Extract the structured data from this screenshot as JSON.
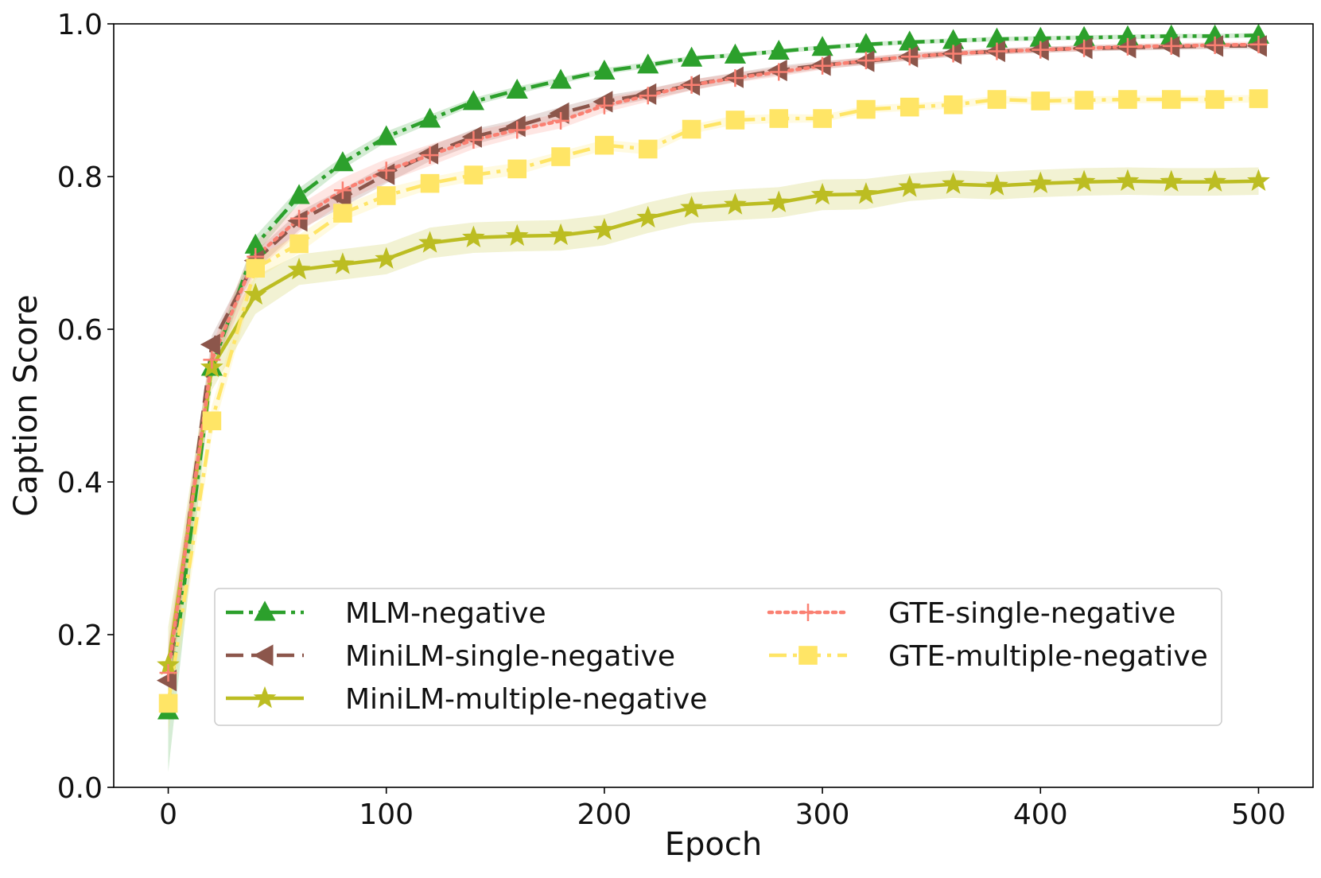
{
  "chart_data": {
    "type": "line",
    "title": "",
    "xlabel": "Epoch",
    "ylabel": "Caption Score",
    "xlim": [
      -25,
      525
    ],
    "ylim": [
      0.0,
      1.0
    ],
    "xticks": [
      0,
      100,
      200,
      300,
      400,
      500
    ],
    "yticks": [
      0.0,
      0.2,
      0.4,
      0.6,
      0.8,
      1.0
    ],
    "xtick_labels": [
      "0",
      "100",
      "200",
      "300",
      "400",
      "500"
    ],
    "ytick_labels": [
      "0.0",
      "0.2",
      "0.4",
      "0.6",
      "0.8",
      "1.0"
    ],
    "grid": false,
    "legend_position": "lower-right",
    "x": [
      0,
      20,
      40,
      60,
      80,
      100,
      120,
      140,
      160,
      180,
      200,
      220,
      240,
      260,
      280,
      300,
      320,
      340,
      360,
      380,
      400,
      420,
      440,
      460,
      480,
      500
    ],
    "series": [
      {
        "name": "MLM-negative",
        "color": "#2ca02c",
        "dash": "dashdotdot",
        "marker": "triangle-up",
        "values": [
          0.1,
          0.55,
          0.71,
          0.775,
          0.818,
          0.852,
          0.875,
          0.898,
          0.913,
          0.926,
          0.938,
          0.946,
          0.955,
          0.959,
          0.964,
          0.969,
          0.973,
          0.976,
          0.978,
          0.98,
          0.981,
          0.982,
          0.983,
          0.984,
          0.984,
          0.985
        ],
        "band": [
          0.08,
          0.015,
          0.012,
          0.01,
          0.008,
          0.007,
          0.006,
          0.005,
          0.005,
          0.004,
          0.004,
          0.004,
          0.003,
          0.003,
          0.003,
          0.003,
          0.003,
          0.003,
          0.003,
          0.003,
          0.003,
          0.003,
          0.003,
          0.003,
          0.003,
          0.003
        ]
      },
      {
        "name": "MiniLM-single-negative",
        "color": "#8c564b",
        "dash": "dashed",
        "marker": "triangle-left",
        "values": [
          0.14,
          0.58,
          0.69,
          0.742,
          0.772,
          0.803,
          0.83,
          0.852,
          0.866,
          0.883,
          0.898,
          0.908,
          0.92,
          0.93,
          0.939,
          0.946,
          0.951,
          0.957,
          0.961,
          0.964,
          0.966,
          0.968,
          0.969,
          0.97,
          0.971,
          0.971
        ],
        "band": [
          0.03,
          0.012,
          0.012,
          0.012,
          0.012,
          0.012,
          0.01,
          0.01,
          0.009,
          0.008,
          0.008,
          0.007,
          0.007,
          0.006,
          0.006,
          0.005,
          0.005,
          0.005,
          0.004,
          0.004,
          0.004,
          0.004,
          0.004,
          0.004,
          0.004,
          0.004
        ]
      },
      {
        "name": "MiniLM-multiple-negative",
        "color": "#bcbd22",
        "dash": "solid",
        "marker": "star",
        "values": [
          0.16,
          0.55,
          0.645,
          0.678,
          0.685,
          0.692,
          0.713,
          0.72,
          0.722,
          0.723,
          0.73,
          0.746,
          0.759,
          0.763,
          0.766,
          0.776,
          0.777,
          0.786,
          0.79,
          0.788,
          0.791,
          0.793,
          0.794,
          0.793,
          0.793,
          0.794
        ],
        "band": [
          0.05,
          0.03,
          0.025,
          0.02,
          0.02,
          0.02,
          0.02,
          0.02,
          0.02,
          0.02,
          0.02,
          0.02,
          0.02,
          0.02,
          0.02,
          0.02,
          0.02,
          0.018,
          0.018,
          0.018,
          0.018,
          0.018,
          0.018,
          0.018,
          0.018,
          0.018
        ]
      },
      {
        "name": "GTE-single-negative",
        "color": "#fa8072",
        "dash": "dotted",
        "marker": "plus",
        "values": [
          0.15,
          0.56,
          0.695,
          0.745,
          0.782,
          0.808,
          0.828,
          0.848,
          0.861,
          0.873,
          0.893,
          0.906,
          0.92,
          0.929,
          0.937,
          0.945,
          0.952,
          0.957,
          0.961,
          0.964,
          0.966,
          0.968,
          0.97,
          0.971,
          0.972,
          0.973
        ],
        "band": [
          0.04,
          0.02,
          0.02,
          0.018,
          0.016,
          0.015,
          0.014,
          0.012,
          0.01,
          0.01,
          0.009,
          0.008,
          0.007,
          0.006,
          0.006,
          0.005,
          0.005,
          0.005,
          0.004,
          0.004,
          0.004,
          0.004,
          0.004,
          0.004,
          0.004,
          0.004
        ]
      },
      {
        "name": "GTE-multiple-negative",
        "color": "#ffe566",
        "dash": "dashdot",
        "marker": "square",
        "values": [
          0.11,
          0.48,
          0.68,
          0.712,
          0.752,
          0.775,
          0.791,
          0.802,
          0.81,
          0.826,
          0.841,
          0.836,
          0.862,
          0.874,
          0.876,
          0.876,
          0.888,
          0.891,
          0.894,
          0.901,
          0.899,
          0.9,
          0.901,
          0.901,
          0.901,
          0.902
        ],
        "band": [
          0.04,
          0.02,
          0.015,
          0.012,
          0.01,
          0.01,
          0.008,
          0.008,
          0.008,
          0.007,
          0.007,
          0.007,
          0.006,
          0.006,
          0.006,
          0.005,
          0.005,
          0.005,
          0.005,
          0.005,
          0.005,
          0.005,
          0.005,
          0.005,
          0.005,
          0.005
        ]
      }
    ],
    "legend_order": [
      {
        "series": 0,
        "col": 0,
        "row": 0
      },
      {
        "series": 1,
        "col": 0,
        "row": 1
      },
      {
        "series": 2,
        "col": 0,
        "row": 2
      },
      {
        "series": 3,
        "col": 1,
        "row": 0
      },
      {
        "series": 4,
        "col": 1,
        "row": 1
      }
    ]
  }
}
